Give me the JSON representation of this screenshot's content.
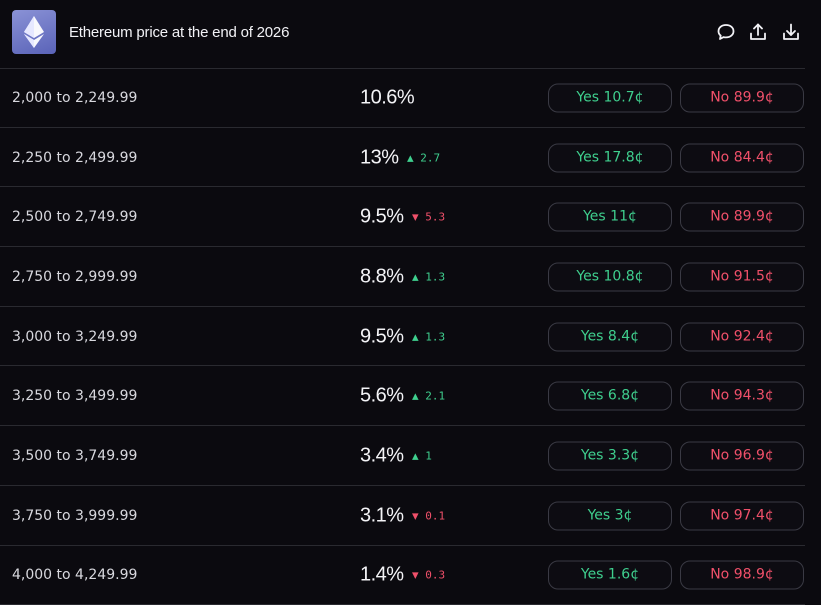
{
  "header": {
    "title": "Ethereum price at the end of 2026",
    "icons": [
      "comment-icon",
      "share-icon",
      "download-icon"
    ]
  },
  "colors": {
    "up": "#3fcf8e",
    "down": "#f0506a",
    "background": "#0b0a0f"
  },
  "rows": [
    {
      "range": "2,000 to 2,249.99",
      "pct": "10.6%",
      "change": "",
      "dir": "",
      "yes": "Yes 10.7¢",
      "no": "No 89.9¢"
    },
    {
      "range": "2,250 to 2,499.99",
      "pct": "13%",
      "change": "▲ 2.7",
      "dir": "up",
      "yes": "Yes 17.8¢",
      "no": "No 84.4¢"
    },
    {
      "range": "2,500 to 2,749.99",
      "pct": "9.5%",
      "change": "▼ 5.3",
      "dir": "down",
      "yes": "Yes 11¢",
      "no": "No 89.9¢"
    },
    {
      "range": "2,750 to 2,999.99",
      "pct": "8.8%",
      "change": "▲ 1.3",
      "dir": "up",
      "yes": "Yes 10.8¢",
      "no": "No 91.5¢"
    },
    {
      "range": "3,000 to 3,249.99",
      "pct": "9.5%",
      "change": "▲ 1.3",
      "dir": "up",
      "yes": "Yes 8.4¢",
      "no": "No 92.4¢"
    },
    {
      "range": "3,250 to 3,499.99",
      "pct": "5.6%",
      "change": "▲ 2.1",
      "dir": "up",
      "yes": "Yes 6.8¢",
      "no": "No 94.3¢"
    },
    {
      "range": "3,500 to 3,749.99",
      "pct": "3.4%",
      "change": "▲ 1",
      "dir": "up",
      "yes": "Yes 3.3¢",
      "no": "No 96.9¢"
    },
    {
      "range": "3,750 to 3,999.99",
      "pct": "3.1%",
      "change": "▼ 0.1",
      "dir": "down",
      "yes": "Yes 3¢",
      "no": "No 97.4¢"
    },
    {
      "range": "4,000 to 4,249.99",
      "pct": "1.4%",
      "change": "▼ 0.3",
      "dir": "down",
      "yes": "Yes 1.6¢",
      "no": "No 98.9¢"
    }
  ]
}
